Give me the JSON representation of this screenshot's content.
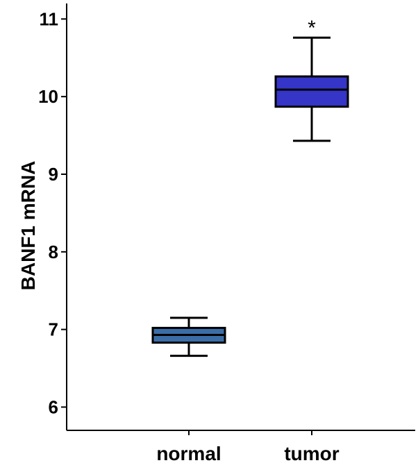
{
  "chart_data": {
    "type": "box",
    "ylabel": "BANF1 mRNA",
    "xlabel": "",
    "ylim": [
      5.7,
      11.2
    ],
    "yticks": [
      6,
      7,
      8,
      9,
      10,
      11
    ],
    "categories": [
      "normal",
      "tumor"
    ],
    "boxes": [
      {
        "category": "normal",
        "whisker_low": 6.66,
        "q1": 6.83,
        "median": 6.93,
        "q3": 7.02,
        "whisker_high": 7.15,
        "color": "#3b6ea8",
        "annotation": ""
      },
      {
        "category": "tumor",
        "whisker_low": 9.43,
        "q1": 9.87,
        "median": 10.09,
        "q3": 10.26,
        "whisker_high": 10.76,
        "color": "#3535c8",
        "annotation": "*"
      }
    ],
    "grid": false,
    "legend": "none"
  }
}
